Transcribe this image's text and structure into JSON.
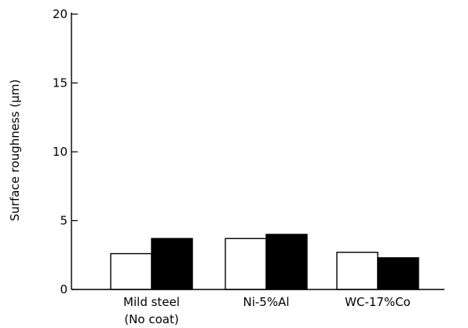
{
  "chart_data": {
    "type": "bar",
    "title": "",
    "ylabel": "Surface roughness (μm)",
    "xlabel": "",
    "ylim": [
      0,
      20
    ],
    "yticks": [
      0,
      5,
      10,
      15,
      20
    ],
    "grid": false,
    "categories": [
      [
        "Mild steel",
        "(No coat)"
      ],
      [
        "Ni-5%Al"
      ],
      [
        "WC-17%Co"
      ]
    ],
    "series": [
      {
        "values": [
          2.6,
          3.7,
          2.7
        ],
        "color": "#ffffff"
      },
      {
        "values": [
          3.7,
          4.0,
          2.3
        ],
        "color": "#000000"
      }
    ]
  }
}
